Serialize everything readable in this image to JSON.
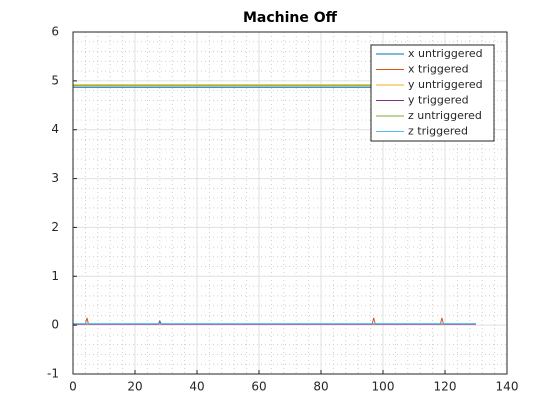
{
  "chart_data": {
    "type": "line",
    "title": "Machine Off",
    "xlim": [
      0,
      140
    ],
    "xticks": [
      0,
      20,
      40,
      60,
      80,
      100,
      120,
      140
    ],
    "ylim": [
      -1,
      6
    ],
    "yticks": [
      -1,
      0,
      1,
      2,
      3,
      4,
      5,
      6
    ],
    "grid": true,
    "minor_grid": true,
    "legend": "northeast",
    "series": [
      {
        "name": "x untriggered",
        "color": "#0072BD",
        "x": [
          0,
          130
        ],
        "values": [
          4.87,
          4.87
        ]
      },
      {
        "name": "x triggered",
        "color": "#D95319",
        "x": [
          0,
          4,
          4.5,
          5,
          96.5,
          97,
          97.5,
          118.5,
          119,
          119.5,
          130
        ],
        "values": [
          0.02,
          0.02,
          0.15,
          0.02,
          0.02,
          0.15,
          0.02,
          0.02,
          0.15,
          0.02,
          0.02
        ]
      },
      {
        "name": "y untriggered",
        "color": "#EDB120",
        "x": [
          0,
          130
        ],
        "values": [
          4.92,
          4.92
        ]
      },
      {
        "name": "y triggered",
        "color": "#7E2F8E",
        "x": [
          0,
          27.5,
          28,
          28.5,
          130
        ],
        "values": [
          0.02,
          0.02,
          0.08,
          0.02,
          0.02
        ]
      },
      {
        "name": "z untriggered",
        "color": "#77AC30",
        "x": [
          0,
          130
        ],
        "values": [
          4.9,
          4.9
        ]
      },
      {
        "name": "z triggered",
        "color": "#4DBEEE",
        "x": [
          0,
          130
        ],
        "values": [
          0.03,
          0.03
        ]
      }
    ]
  }
}
